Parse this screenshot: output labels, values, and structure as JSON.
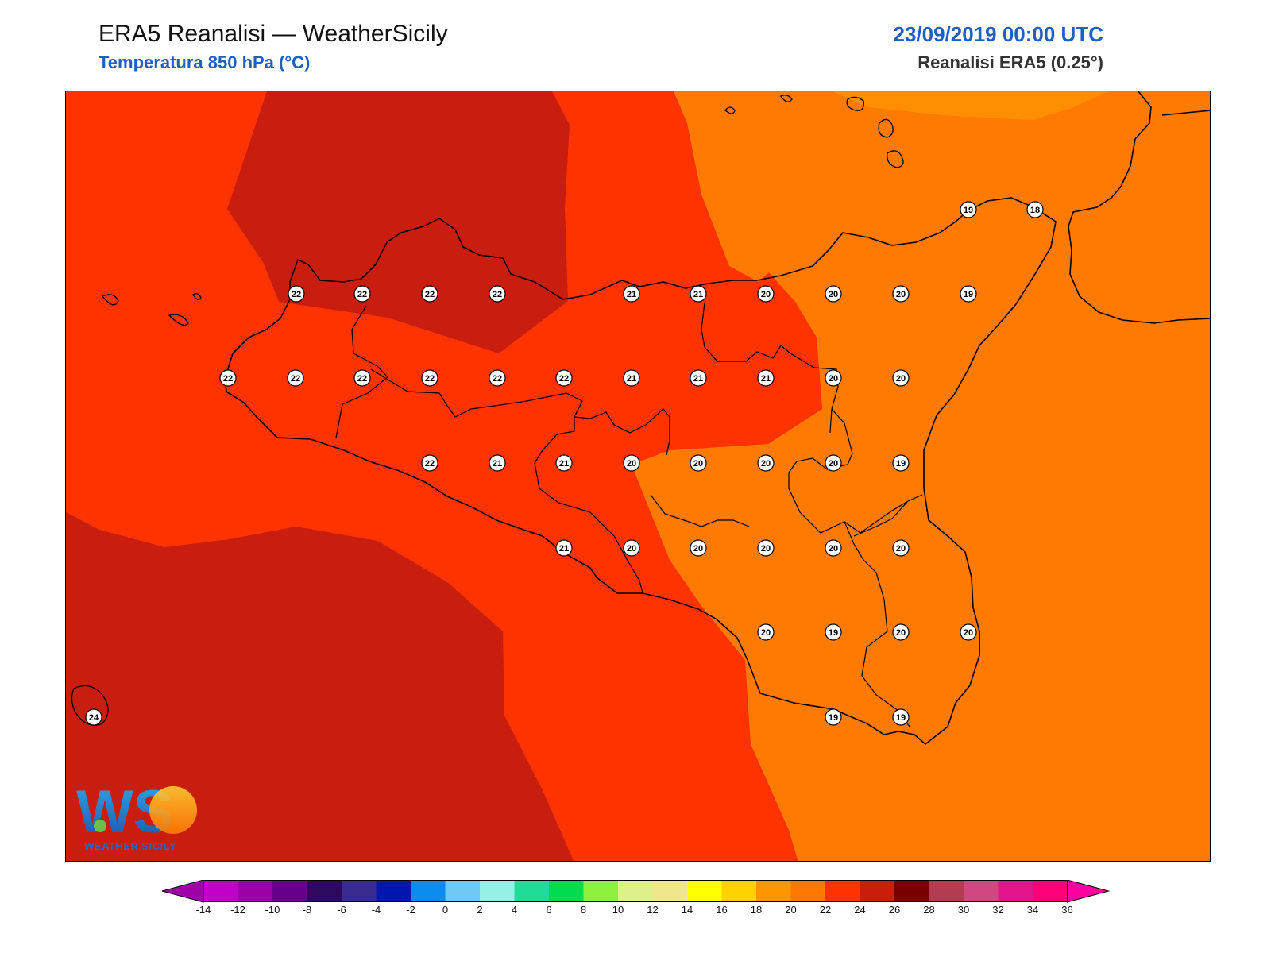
{
  "header": {
    "title": "ERA5 Reanalisi — WeatherSicily",
    "subtitle": "Temperatura 850 hPa (°C)",
    "datetime": "23/09/2019 00:00 UTC",
    "model": "Reanalisi ERA5 (0.25°)"
  },
  "logo": {
    "text": "WS",
    "caption": "WEATHER SICILY"
  },
  "colors": {
    "band_24_26": "#c81d0f",
    "band_22_24": "#ff3300",
    "band_20_22": "#ff7a00",
    "band_18_20": "#ff8f00",
    "coast": "#000000"
  },
  "map_values": [
    {
      "label": "19"
    },
    {
      "label": "18"
    },
    {
      "label": "22"
    },
    {
      "label": "22"
    },
    {
      "label": "22"
    },
    {
      "label": "22"
    },
    {
      "label": "21"
    },
    {
      "label": "21"
    },
    {
      "label": "20"
    },
    {
      "label": "20"
    },
    {
      "label": "20"
    },
    {
      "label": "19"
    },
    {
      "label": "22"
    },
    {
      "label": "22"
    },
    {
      "label": "22"
    },
    {
      "label": "22"
    },
    {
      "label": "22"
    },
    {
      "label": "22"
    },
    {
      "label": "21"
    },
    {
      "label": "21"
    },
    {
      "label": "21"
    },
    {
      "label": "20"
    },
    {
      "label": "20"
    },
    {
      "label": "22"
    },
    {
      "label": "21"
    },
    {
      "label": "21"
    },
    {
      "label": "20"
    },
    {
      "label": "20"
    },
    {
      "label": "20"
    },
    {
      "label": "20"
    },
    {
      "label": "19"
    },
    {
      "label": "21"
    },
    {
      "label": "20"
    },
    {
      "label": "20"
    },
    {
      "label": "20"
    },
    {
      "label": "20"
    },
    {
      "label": "20"
    },
    {
      "label": "20"
    },
    {
      "label": "19"
    },
    {
      "label": "20"
    },
    {
      "label": "20"
    },
    {
      "label": "24"
    },
    {
      "label": "19"
    },
    {
      "label": "19"
    }
  ],
  "colorbar": {
    "ticks": [
      "-14",
      "-12",
      "-10",
      "-8",
      "-6",
      "-4",
      "-2",
      "0",
      "2",
      "4",
      "6",
      "8",
      "10",
      "12",
      "14",
      "16",
      "18",
      "20",
      "22",
      "24",
      "26",
      "28",
      "30",
      "32",
      "34",
      "36"
    ],
    "colors": [
      "#c000c8",
      "#9a00a6",
      "#66008a",
      "#2e0a5e",
      "#3a2c8e",
      "#0016b0",
      "#0a8cf0",
      "#6ccaf5",
      "#96f0e6",
      "#1fdc96",
      "#00dc50",
      "#8ef03c",
      "#dcf08c",
      "#f0e68c",
      "#ffff00",
      "#ffd200",
      "#ff9600",
      "#ff7800",
      "#ff3200",
      "#c81e0a",
      "#7a0000",
      "#b43c50",
      "#d24682",
      "#e6148c",
      "#ff0078"
    ],
    "left_arrow_color": "#a000a8",
    "right_arrow_color": "#ff00a0"
  }
}
